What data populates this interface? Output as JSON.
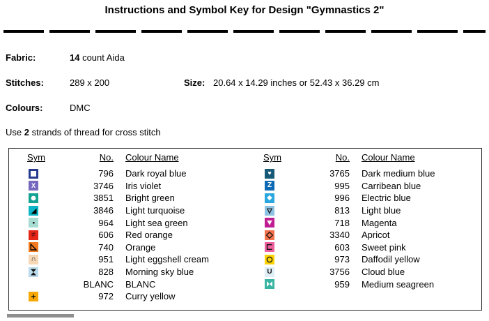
{
  "title": "Instructions and Symbol Key for Design \"Gymnastics 2\"",
  "info": {
    "fabric_label": "Fabric:",
    "fabric_value_bold": "14",
    "fabric_value_rest": " count Aida",
    "stitches_label": "Stitches:",
    "stitches_value": "289 x 200",
    "size_label": "Size:",
    "size_value": "20.64 x 14.29 inches or 52.43 x 36.29 cm",
    "colours_label": "Colours:",
    "colours_value": "DMC",
    "strands_prefix": "Use ",
    "strands_bold": "2",
    "strands_suffix": " strands of thread for cross stitch"
  },
  "key_table": {
    "headers": {
      "sym": "Sym",
      "no": "No.",
      "colour_name": "Colour Name"
    },
    "left_rows": [
      {
        "no": "796",
        "name": "Dark royal blue",
        "sym": {
          "icon": "square-outline-symbol",
          "shape": "inner-square",
          "bg": "#ffffff",
          "fg": "#263b8f"
        }
      },
      {
        "no": "3746",
        "name": "Iris violet",
        "sym": {
          "icon": "x-symbol",
          "glyph": "X",
          "bg": "#7668bd",
          "fg": "#ffffff",
          "size": 9,
          "bold": true
        }
      },
      {
        "no": "3851",
        "name": "Bright green",
        "sym": {
          "icon": "white-disc-symbol",
          "svg": "disc",
          "bg": "#14a392",
          "fg": "#ffffff"
        }
      },
      {
        "no": "3846",
        "name": "Light turquoise",
        "sym": {
          "icon": "triangle-bottom-right-symbol",
          "svg": "tri-br",
          "bg": "#0db6c6",
          "fg": "#000000"
        }
      },
      {
        "no": "964",
        "name": "Light sea green",
        "sym": {
          "icon": "small-dot-symbol",
          "svg": "dot",
          "bg": "#a7dcd3",
          "fg": "#1a1a1a"
        }
      },
      {
        "no": "606",
        "name": "Red orange",
        "sym": {
          "icon": "not-equal-symbol",
          "glyph": "≠",
          "bg": "#e62617",
          "fg": "#6e0f0f",
          "size": 10,
          "bold": true
        }
      },
      {
        "no": "740",
        "name": "Orange",
        "sym": {
          "icon": "triangle-outline-bottom-left-symbol",
          "svg": "tri-bl-outline",
          "bg": "#f27b21",
          "fg": "#000000"
        }
      },
      {
        "no": "951",
        "name": "Light eggshell cream",
        "sym": {
          "icon": "arc-symbol",
          "glyph": "∩",
          "bg": "#f6d8b6",
          "fg": "#151515",
          "size": 10,
          "bold": true
        }
      },
      {
        "no": "828",
        "name": "Morning sky blue",
        "sym": {
          "icon": "hourglass-symbol",
          "svg": "hourglass",
          "bg": "#badbeb",
          "fg": "#151515"
        }
      },
      {
        "no": "BLANC",
        "name": "BLANC",
        "sym": {
          "icon": "blank-symbol",
          "shape": "blank",
          "bg": "#ffffff",
          "fg": "#ffffff"
        }
      },
      {
        "no": "972",
        "name": "Curry yellow",
        "sym": {
          "icon": "plus-symbol",
          "glyph": "+",
          "bg": "#f8a805",
          "fg": "#111111",
          "size": 12,
          "bold": true
        }
      }
    ],
    "right_rows": [
      {
        "no": "3765",
        "name": "Dark medium blue",
        "sym": {
          "icon": "heart-symbol",
          "glyph": "♥",
          "bg": "#175a77",
          "fg": "#ffffff",
          "size": 9
        }
      },
      {
        "no": "995",
        "name": "Carribean blue",
        "sym": {
          "icon": "z-symbol",
          "glyph": "Z",
          "bg": "#0e69b4",
          "fg": "#ffffff",
          "size": 10,
          "bold": true
        }
      },
      {
        "no": "996",
        "name": "Electric blue",
        "sym": {
          "icon": "diamond-filled-symbol",
          "glyph": "◆",
          "bg": "#2ba7e0",
          "fg": "#ffffff",
          "size": 10
        }
      },
      {
        "no": "813",
        "name": "Light blue",
        "sym": {
          "icon": "triangle-down-outline-symbol",
          "svg": "tri-down-outline",
          "bg": "#8ec2e2",
          "fg": "#151515"
        }
      },
      {
        "no": "718",
        "name": "Magenta",
        "sym": {
          "icon": "triangle-down-filled-symbol",
          "svg": "tri-down",
          "bg": "#c01d92",
          "fg": "#ffffff"
        }
      },
      {
        "no": "3340",
        "name": "Apricot",
        "sym": {
          "icon": "diamond-outline-symbol",
          "svg": "diamond-outline",
          "bg": "#f3714b",
          "fg": "#151515"
        }
      },
      {
        "no": "603",
        "name": "Sweet pink",
        "sym": {
          "icon": "open-square-symbol",
          "svg": "open-square",
          "bg": "#f0609f",
          "fg": "#151515"
        }
      },
      {
        "no": "973",
        "name": "Daffodil yellow",
        "sym": {
          "icon": "circle-outline-symbol",
          "svg": "circle-outline",
          "bg": "#fdd201",
          "fg": "#151515"
        }
      },
      {
        "no": "3756",
        "name": "Cloud blue",
        "sym": {
          "icon": "u-symbol",
          "glyph": "U",
          "bg": "#dfeef6",
          "fg": "#151515",
          "size": 10,
          "bold": true
        }
      },
      {
        "no": "959",
        "name": "Medium seagreen",
        "sym": {
          "icon": "bowtie-symbol",
          "svg": "bowtie",
          "bg": "#38b4a2",
          "fg": "#ffffff"
        }
      }
    ]
  }
}
